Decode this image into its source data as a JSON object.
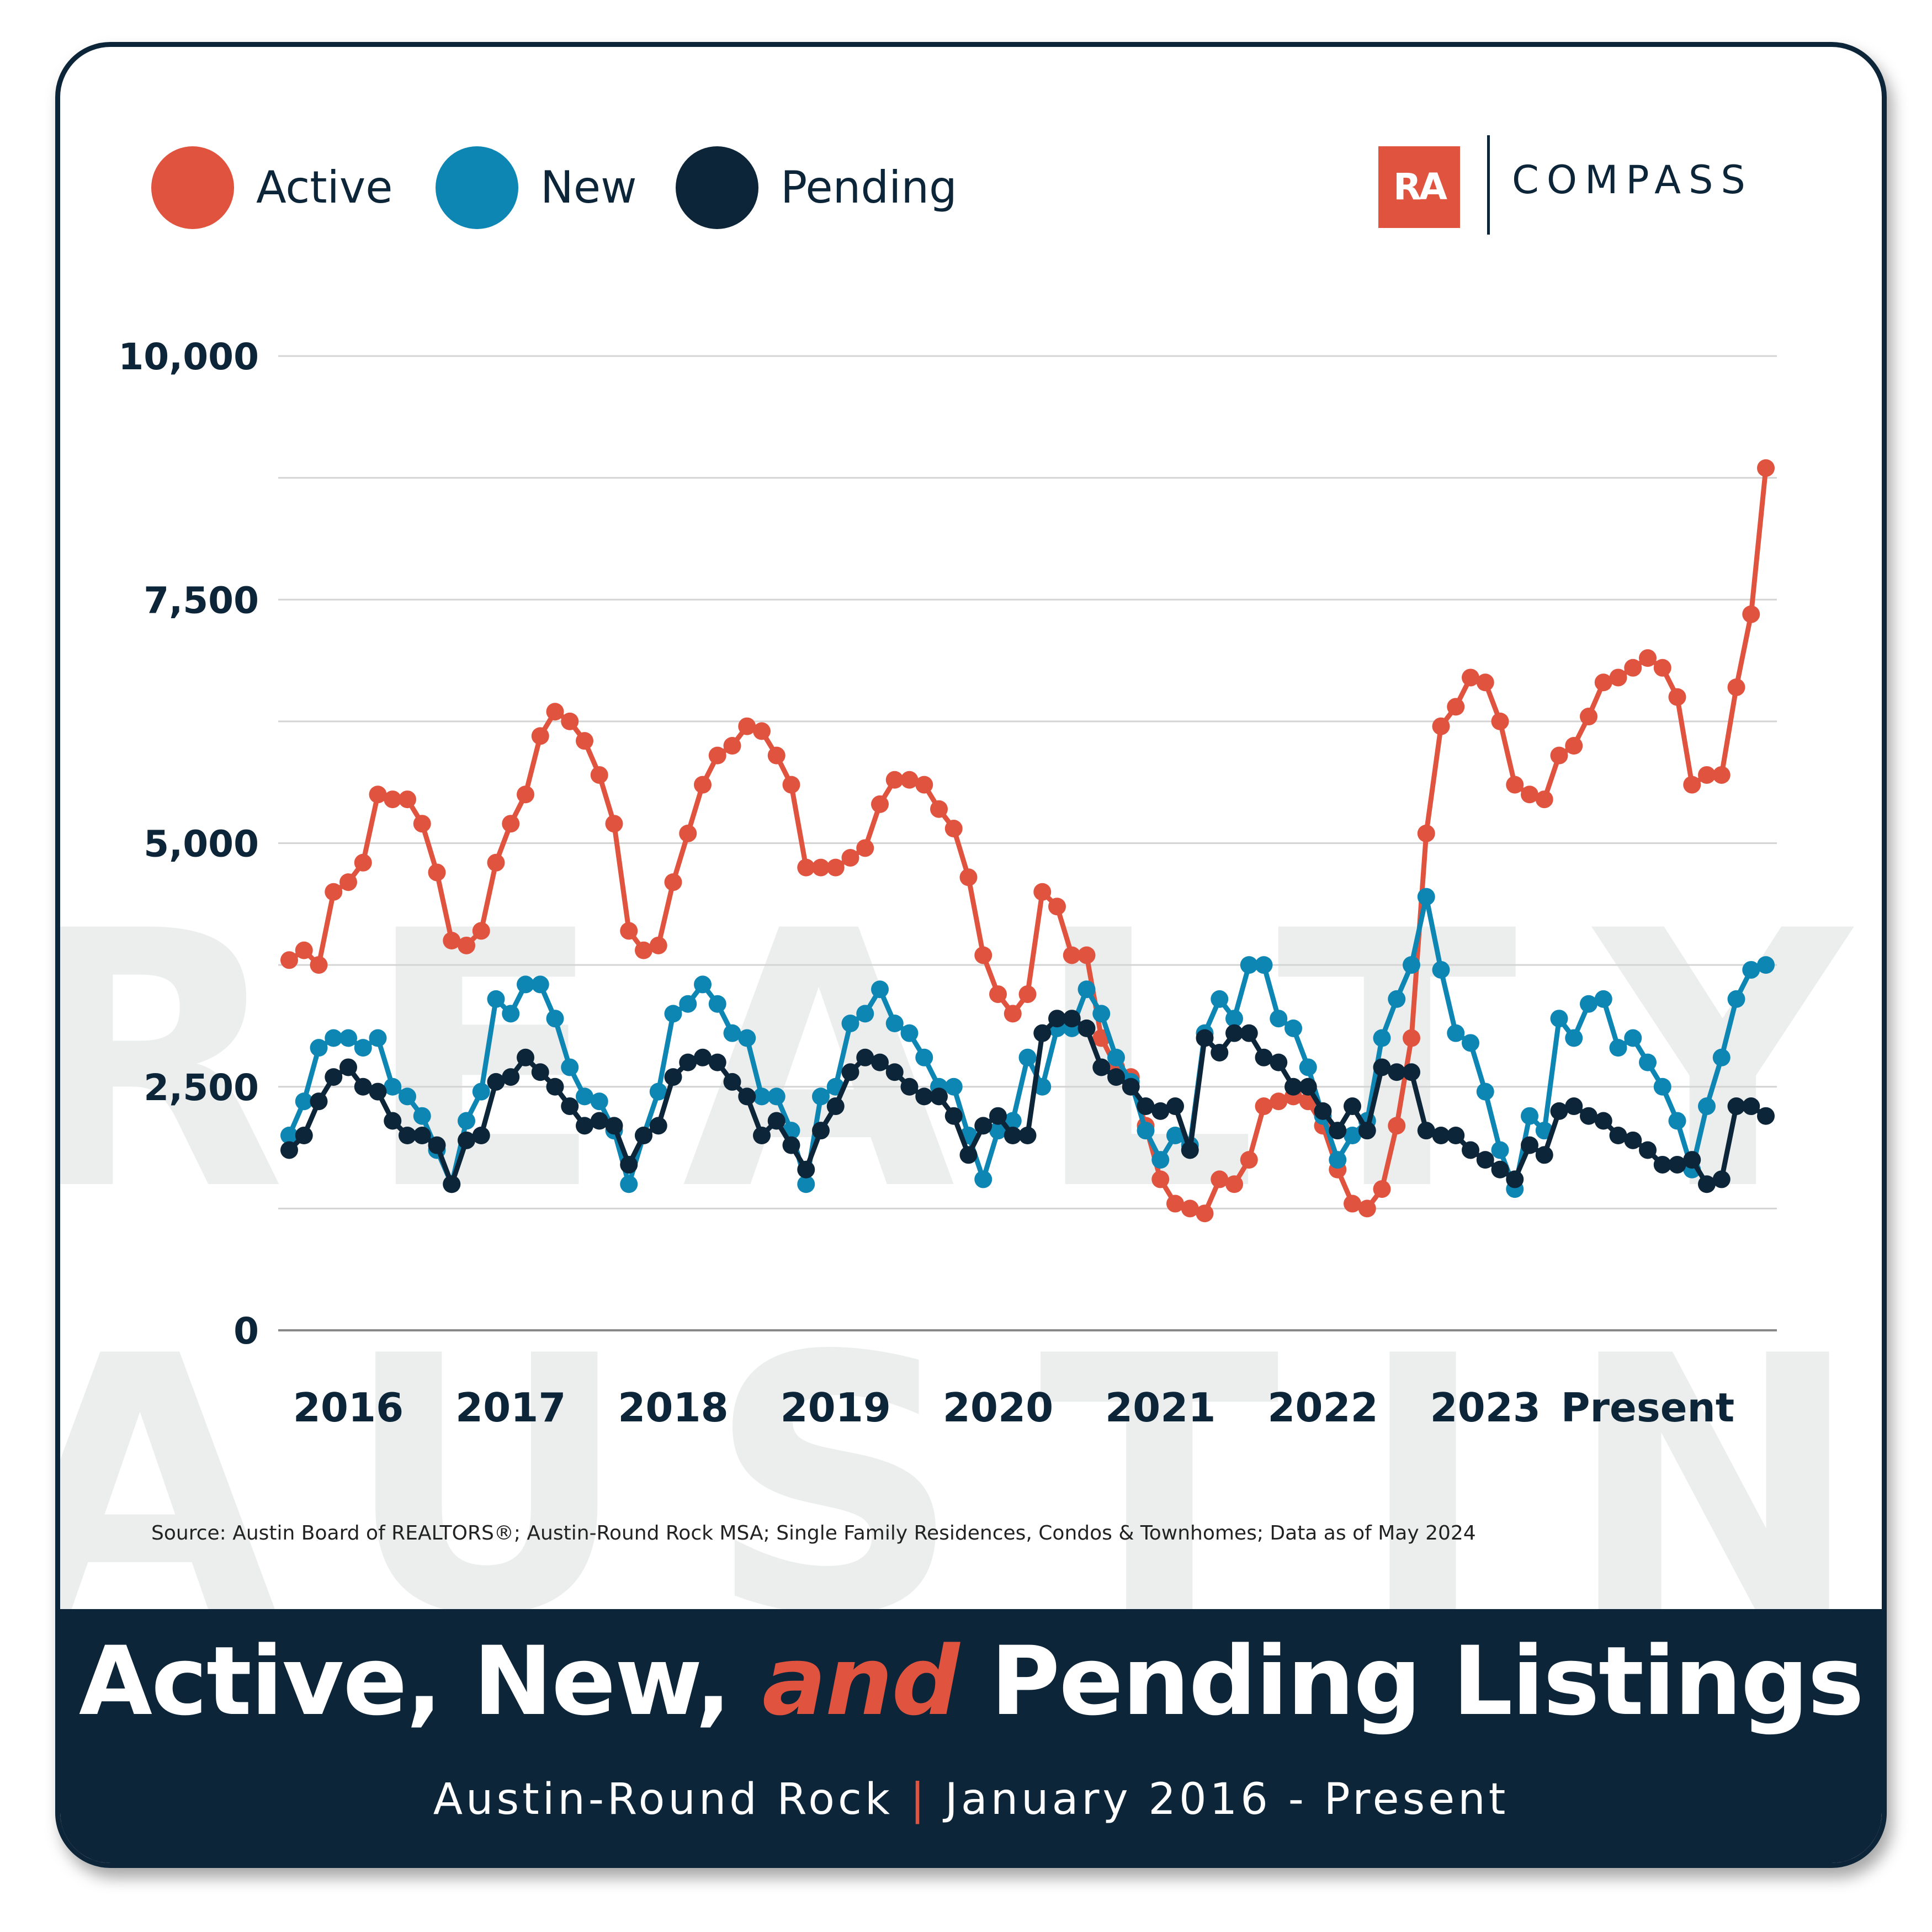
{
  "legend": [
    {
      "label": "Active",
      "color": "#e0533f"
    },
    {
      "label": "New",
      "color": "#0e86b4"
    },
    {
      "label": "Pending",
      "color": "#0d2538"
    }
  ],
  "logo": {
    "ra": "RA",
    "compass": "COMPASS"
  },
  "watermark": [
    "REALTY",
    "AUSTIN"
  ],
  "source": "Source: Austin Board of REALTORS®; Austin-Round Rock MSA; Single Family Residences, Condos & Townhomes; Data as of May 2024",
  "footer": {
    "title_part1": "Active, New,",
    "title_em": "and",
    "title_part2": "Pending Listings",
    "subtitle_left": "Austin-Round Rock",
    "subtitle_sep": "|",
    "subtitle_right": "January 2016 - Present"
  },
  "chart_data": {
    "type": "line",
    "title": "Active, New, and Pending Listings",
    "subtitle": "Austin-Round Rock | January 2016 - Present",
    "ylim": [
      0,
      10000
    ],
    "y_ticks": [
      0,
      2500,
      5000,
      7500,
      10000
    ],
    "y_tick_labels": [
      "0",
      "2,500",
      "5,000",
      "7,500",
      "10,000"
    ],
    "x_tick_labels": [
      "2016",
      "2017",
      "2018",
      "2019",
      "2020",
      "2021",
      "2022",
      "2023",
      "Present"
    ],
    "x_tick_months": [
      4,
      15,
      26,
      37,
      48,
      59,
      70,
      81,
      92
    ],
    "grid": true,
    "legend_position": "top-left",
    "series": [
      {
        "name": "Active",
        "color": "#e0533f",
        "values": [
          3800,
          3900,
          3750,
          4500,
          4600,
          4800,
          5500,
          5450,
          5450,
          5200,
          4700,
          4000,
          3950,
          4100,
          4800,
          5200,
          5500,
          6100,
          6350,
          6250,
          6050,
          5700,
          5200,
          4100,
          3900,
          3950,
          4600,
          5100,
          5600,
          5900,
          6000,
          6200,
          6150,
          5900,
          5600,
          4750,
          4750,
          4750,
          4850,
          4950,
          5400,
          5650,
          5650,
          5600,
          5350,
          5150,
          4650,
          3850,
          3450,
          3250,
          3450,
          4500,
          4350,
          3850,
          3850,
          3000,
          2700,
          2600,
          2100,
          1550,
          1300,
          1250,
          1200,
          1550,
          1500,
          1750,
          2300,
          2350,
          2400,
          2350,
          2100,
          1650,
          1300,
          1250,
          1450,
          2100,
          3000,
          5100,
          6200,
          6400,
          6700,
          6650,
          6250,
          5600,
          5500,
          5450,
          5900,
          6000,
          6300,
          6650,
          6700,
          6800,
          6900,
          6800,
          6500,
          5600,
          5700,
          5700,
          6600,
          7350,
          8850
        ]
      },
      {
        "name": "New",
        "color": "#0e86b4",
        "values": [
          2000,
          2350,
          2900,
          3000,
          3000,
          2900,
          3000,
          2500,
          2400,
          2200,
          1850,
          1500,
          2150,
          2450,
          3400,
          3250,
          3550,
          3550,
          3200,
          2700,
          2400,
          2350,
          2050,
          1500,
          2000,
          2450,
          3250,
          3350,
          3550,
          3350,
          3050,
          3000,
          2400,
          2400,
          2050,
          1500,
          2400,
          2500,
          3150,
          3250,
          3500,
          3150,
          3050,
          2800,
          2500,
          2500,
          2000,
          1550,
          2050,
          2150,
          2800,
          2500,
          3100,
          3100,
          3500,
          3250,
          2800,
          2550,
          2050,
          1750,
          2000,
          1900,
          3050,
          3400,
          3200,
          3750,
          3750,
          3200,
          3100,
          2700,
          2200,
          1750,
          2000,
          2150,
          3000,
          3400,
          3750,
          4450,
          3700,
          3050,
          2950,
          2450,
          1850,
          1450,
          2200,
          2050,
          3200,
          3000,
          3350,
          3400,
          2900,
          3000,
          2750,
          2500,
          2150,
          1650,
          2300,
          2800,
          3400,
          3700,
          3750
        ]
      },
      {
        "name": "Pending",
        "color": "#0d2538",
        "values": [
          1850,
          2000,
          2350,
          2600,
          2700,
          2500,
          2450,
          2150,
          2000,
          2000,
          1900,
          1500,
          1950,
          2000,
          2550,
          2600,
          2800,
          2650,
          2500,
          2300,
          2100,
          2150,
          2100,
          1700,
          2000,
          2100,
          2600,
          2750,
          2800,
          2750,
          2550,
          2400,
          2000,
          2150,
          1900,
          1650,
          2050,
          2300,
          2650,
          2800,
          2750,
          2650,
          2500,
          2400,
          2400,
          2200,
          1800,
          2100,
          2200,
          2000,
          2000,
          3050,
          3200,
          3200,
          3100,
          2700,
          2600,
          2500,
          2300,
          2250,
          2300,
          1850,
          3000,
          2850,
          3050,
          3050,
          2800,
          2750,
          2500,
          2500,
          2250,
          2050,
          2300,
          2050,
          2700,
          2650,
          2650,
          2050,
          2000,
          2000,
          1850,
          1750,
          1650,
          1550,
          1900,
          1800,
          2250,
          2300,
          2200,
          2150,
          2000,
          1950,
          1850,
          1700,
          1700,
          1750,
          1500,
          1550,
          2300,
          2300,
          2200
        ]
      }
    ]
  }
}
